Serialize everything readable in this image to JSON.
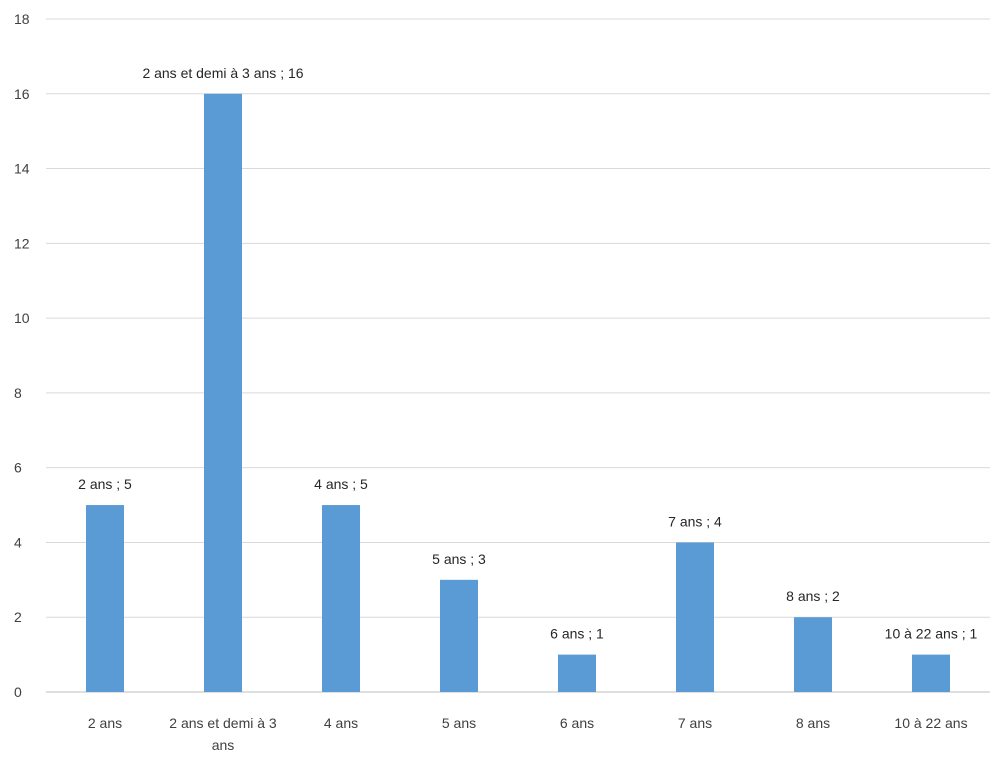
{
  "chart_data": {
    "type": "bar",
    "categories": [
      "2 ans",
      "2 ans et demi à 3 ans",
      "4 ans",
      "5 ans",
      "6 ans",
      "7 ans",
      "8 ans",
      "10 à 22 ans"
    ],
    "category_label_lines": [
      [
        "2 ans"
      ],
      [
        "2 ans et demi à 3",
        "ans"
      ],
      [
        "4 ans"
      ],
      [
        "5 ans"
      ],
      [
        "6 ans"
      ],
      [
        "7 ans"
      ],
      [
        "8 ans"
      ],
      [
        "10 à 22 ans"
      ]
    ],
    "values": [
      5,
      16,
      5,
      3,
      1,
      4,
      2,
      1
    ],
    "data_labels": [
      "2 ans ; 5",
      "2 ans et demi à 3 ans ; 16",
      "4 ans ; 5",
      "5 ans ; 3",
      "6 ans ; 1",
      "7 ans ; 4",
      "8 ans ; 2",
      "10 à 22 ans ; 1"
    ],
    "yticks": [
      "0",
      "2",
      "4",
      "6",
      "8",
      "10",
      "12",
      "14",
      "16",
      "18"
    ],
    "ylim": [
      0,
      18
    ],
    "title": "",
    "xlabel": "",
    "ylabel": "",
    "grid": true,
    "legend": "none",
    "bar_color": "#5b9bd5"
  }
}
